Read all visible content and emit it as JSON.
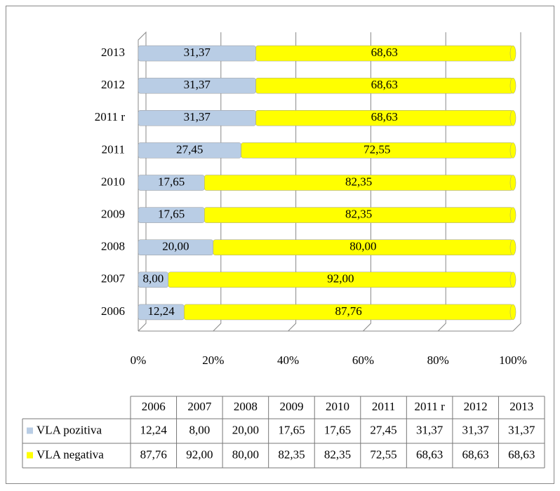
{
  "chart_data": {
    "type": "stacked-bar-100",
    "categories": [
      "2006",
      "2007",
      "2008",
      "2009",
      "2010",
      "2011",
      "2011 r",
      "2012",
      "2013"
    ],
    "series": [
      {
        "name": "VLA pozitiva",
        "color": "#b9cde5",
        "values": [
          12.24,
          8.0,
          20.0,
          17.65,
          17.65,
          27.45,
          31.37,
          31.37,
          31.37
        ],
        "value_labels": [
          "12,24",
          "8,00",
          "20,00",
          "17,65",
          "17,65",
          "27,45",
          "31,37",
          "31,37",
          "31,37"
        ]
      },
      {
        "name": "VLA negativa",
        "color": "#ffff00",
        "values": [
          87.76,
          92.0,
          80.0,
          82.35,
          82.35,
          72.55,
          68.63,
          68.63,
          68.63
        ],
        "value_labels": [
          "87,76",
          "92,00",
          "80,00",
          "82,35",
          "82,35",
          "72,55",
          "68,63",
          "68,63",
          "68,63"
        ]
      }
    ],
    "xlim": [
      0,
      100
    ],
    "xticks": [
      {
        "value": 0,
        "label": "0%"
      },
      {
        "value": 20,
        "label": "20%"
      },
      {
        "value": 40,
        "label": "40%"
      },
      {
        "value": 60,
        "label": "60%"
      },
      {
        "value": 80,
        "label": "80%"
      },
      {
        "value": 100,
        "label": "100%"
      }
    ],
    "grid": true
  }
}
